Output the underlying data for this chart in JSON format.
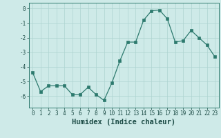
{
  "x": [
    0,
    1,
    2,
    3,
    4,
    5,
    6,
    7,
    8,
    9,
    10,
    11,
    12,
    13,
    14,
    15,
    16,
    17,
    18,
    19,
    20,
    21,
    22,
    23
  ],
  "y": [
    -4.4,
    -5.7,
    -5.3,
    -5.3,
    -5.3,
    -5.9,
    -5.9,
    -5.4,
    -5.9,
    -6.3,
    -5.1,
    -3.6,
    -2.3,
    -2.3,
    -0.8,
    -0.15,
    -0.1,
    -0.7,
    -2.3,
    -2.2,
    -1.5,
    -2.0,
    -2.5,
    -3.3
  ],
  "xlabel": "Humidex (Indice chaleur)",
  "xlim": [
    -0.5,
    23.5
  ],
  "ylim": [
    -6.8,
    0.4
  ],
  "yticks": [
    0,
    -1,
    -2,
    -3,
    -4,
    -5,
    -6
  ],
  "xticks": [
    0,
    1,
    2,
    3,
    4,
    5,
    6,
    7,
    8,
    9,
    10,
    11,
    12,
    13,
    14,
    15,
    16,
    17,
    18,
    19,
    20,
    21,
    22,
    23
  ],
  "line_color": "#2d7a6e",
  "marker_color": "#2d7a6e",
  "bg_color": "#ceeae8",
  "grid_color": "#aed4d0",
  "axis_color": "#2d7a6e",
  "tick_color": "#1a4a44",
  "label_color": "#1a4a44",
  "tick_fontsize": 5.5,
  "xlabel_fontsize": 7.5
}
